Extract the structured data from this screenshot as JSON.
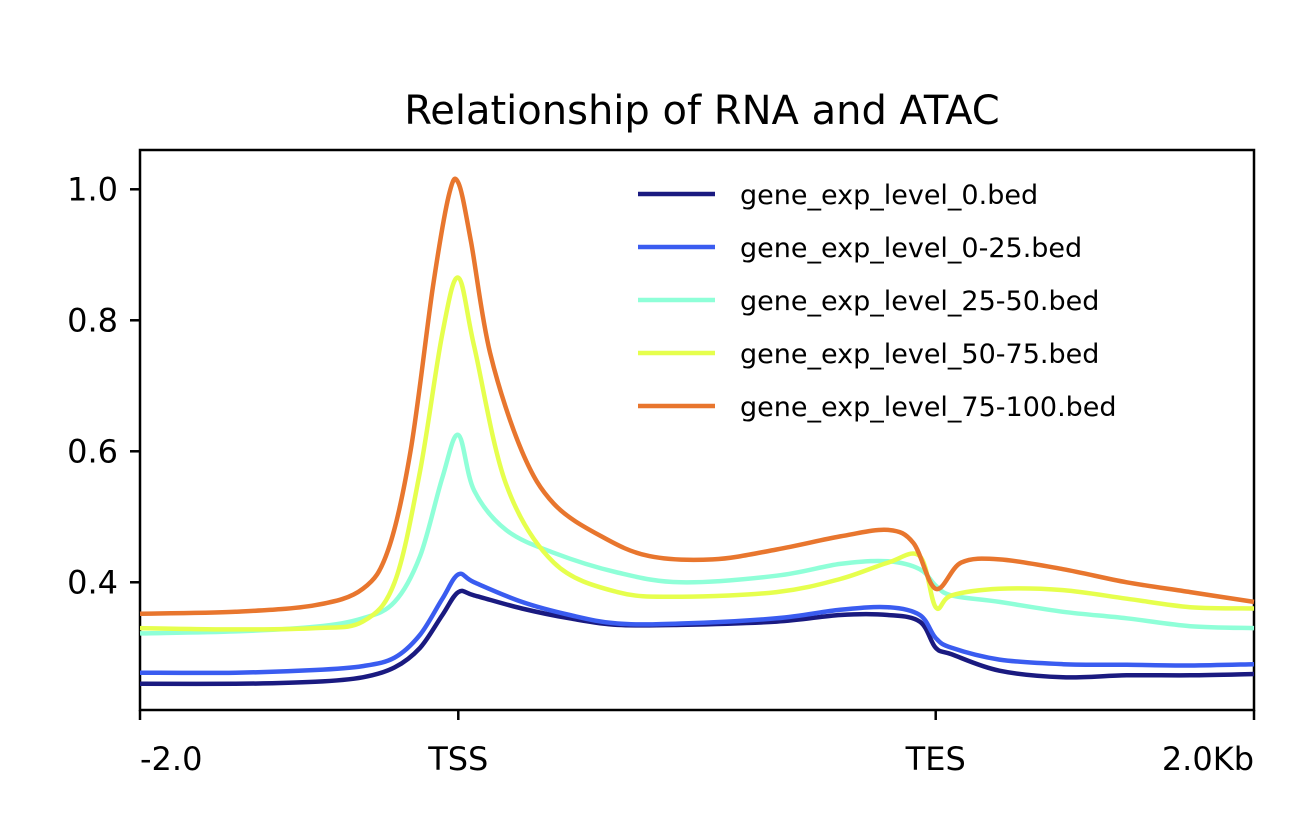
{
  "chart_data": {
    "type": "line",
    "title": "Relationship of RNA and ATAC",
    "xlabel": "",
    "ylabel": "",
    "x_ticks": [
      {
        "label": "-2.0",
        "x": 0
      },
      {
        "label": "TSS",
        "x": 1
      },
      {
        "label": "TES",
        "x": 2.5
      },
      {
        "label": "2.0Kb",
        "x": 3.5
      }
    ],
    "xlim": [
      0,
      3.5
    ],
    "y_ticks": [
      0.4,
      0.6,
      0.8,
      1.0
    ],
    "y_tick_labels": [
      "0.4",
      "0.6",
      "0.8",
      "1.0"
    ],
    "ylim": [
      0.205,
      1.06
    ],
    "grid": false,
    "legend_position": "top-right",
    "series": [
      {
        "name": "gene_exp_level_0.bed",
        "color": "#1a1a80",
        "x": [
          0,
          0.3,
          0.55,
          0.7,
          0.8,
          0.88,
          0.95,
          1.0,
          1.05,
          1.2,
          1.35,
          1.5,
          1.7,
          2.0,
          2.2,
          2.35,
          2.45,
          2.5,
          2.55,
          2.7,
          2.9,
          3.1,
          3.3,
          3.5
        ],
        "y": [
          0.245,
          0.245,
          0.248,
          0.255,
          0.27,
          0.3,
          0.35,
          0.385,
          0.38,
          0.36,
          0.345,
          0.335,
          0.335,
          0.34,
          0.35,
          0.35,
          0.34,
          0.3,
          0.29,
          0.265,
          0.255,
          0.258,
          0.258,
          0.26
        ]
      },
      {
        "name": "gene_exp_level_0-25.bed",
        "color": "#3a5cf0",
        "x": [
          0,
          0.3,
          0.55,
          0.7,
          0.8,
          0.88,
          0.95,
          1.0,
          1.05,
          1.2,
          1.35,
          1.5,
          1.7,
          2.0,
          2.2,
          2.35,
          2.45,
          2.5,
          2.55,
          2.7,
          2.9,
          3.1,
          3.3,
          3.5
        ],
        "y": [
          0.262,
          0.262,
          0.266,
          0.272,
          0.285,
          0.32,
          0.375,
          0.412,
          0.4,
          0.37,
          0.35,
          0.337,
          0.337,
          0.345,
          0.358,
          0.362,
          0.35,
          0.315,
          0.3,
          0.282,
          0.275,
          0.274,
          0.273,
          0.275
        ]
      },
      {
        "name": "gene_exp_level_25-50.bed",
        "color": "#8fffd8",
        "x": [
          0,
          0.3,
          0.55,
          0.7,
          0.8,
          0.88,
          0.95,
          1.0,
          1.05,
          1.15,
          1.3,
          1.5,
          1.7,
          2.0,
          2.2,
          2.35,
          2.45,
          2.5,
          2.55,
          2.7,
          2.9,
          3.1,
          3.3,
          3.5
        ],
        "y": [
          0.322,
          0.325,
          0.332,
          0.345,
          0.37,
          0.44,
          0.56,
          0.625,
          0.54,
          0.48,
          0.445,
          0.415,
          0.4,
          0.41,
          0.428,
          0.432,
          0.42,
          0.395,
          0.38,
          0.37,
          0.355,
          0.345,
          0.333,
          0.33
        ]
      },
      {
        "name": "gene_exp_level_50-75.bed",
        "color": "#e6ff4d",
        "x": [
          0,
          0.3,
          0.55,
          0.7,
          0.8,
          0.88,
          0.95,
          1.0,
          1.05,
          1.15,
          1.3,
          1.5,
          1.7,
          2.0,
          2.2,
          2.35,
          2.45,
          2.5,
          2.55,
          2.7,
          2.9,
          3.1,
          3.3,
          3.5
        ],
        "y": [
          0.33,
          0.328,
          0.33,
          0.34,
          0.4,
          0.57,
          0.78,
          0.865,
          0.76,
          0.55,
          0.43,
          0.385,
          0.378,
          0.385,
          0.405,
          0.43,
          0.44,
          0.362,
          0.38,
          0.39,
          0.388,
          0.375,
          0.362,
          0.36
        ]
      },
      {
        "name": "gene_exp_level_75-100.bed",
        "color": "#e8762e",
        "x": [
          0,
          0.3,
          0.55,
          0.7,
          0.78,
          0.85,
          0.92,
          0.97,
          1.0,
          1.04,
          1.1,
          1.2,
          1.3,
          1.45,
          1.6,
          1.8,
          2.0,
          2.2,
          2.35,
          2.43,
          2.5,
          2.58,
          2.7,
          2.9,
          3.1,
          3.3,
          3.5
        ],
        "y": [
          0.352,
          0.355,
          0.365,
          0.39,
          0.45,
          0.6,
          0.85,
          0.99,
          1.01,
          0.92,
          0.75,
          0.6,
          0.52,
          0.47,
          0.44,
          0.435,
          0.45,
          0.47,
          0.48,
          0.46,
          0.39,
          0.43,
          0.435,
          0.42,
          0.4,
          0.385,
          0.37
        ]
      }
    ]
  }
}
